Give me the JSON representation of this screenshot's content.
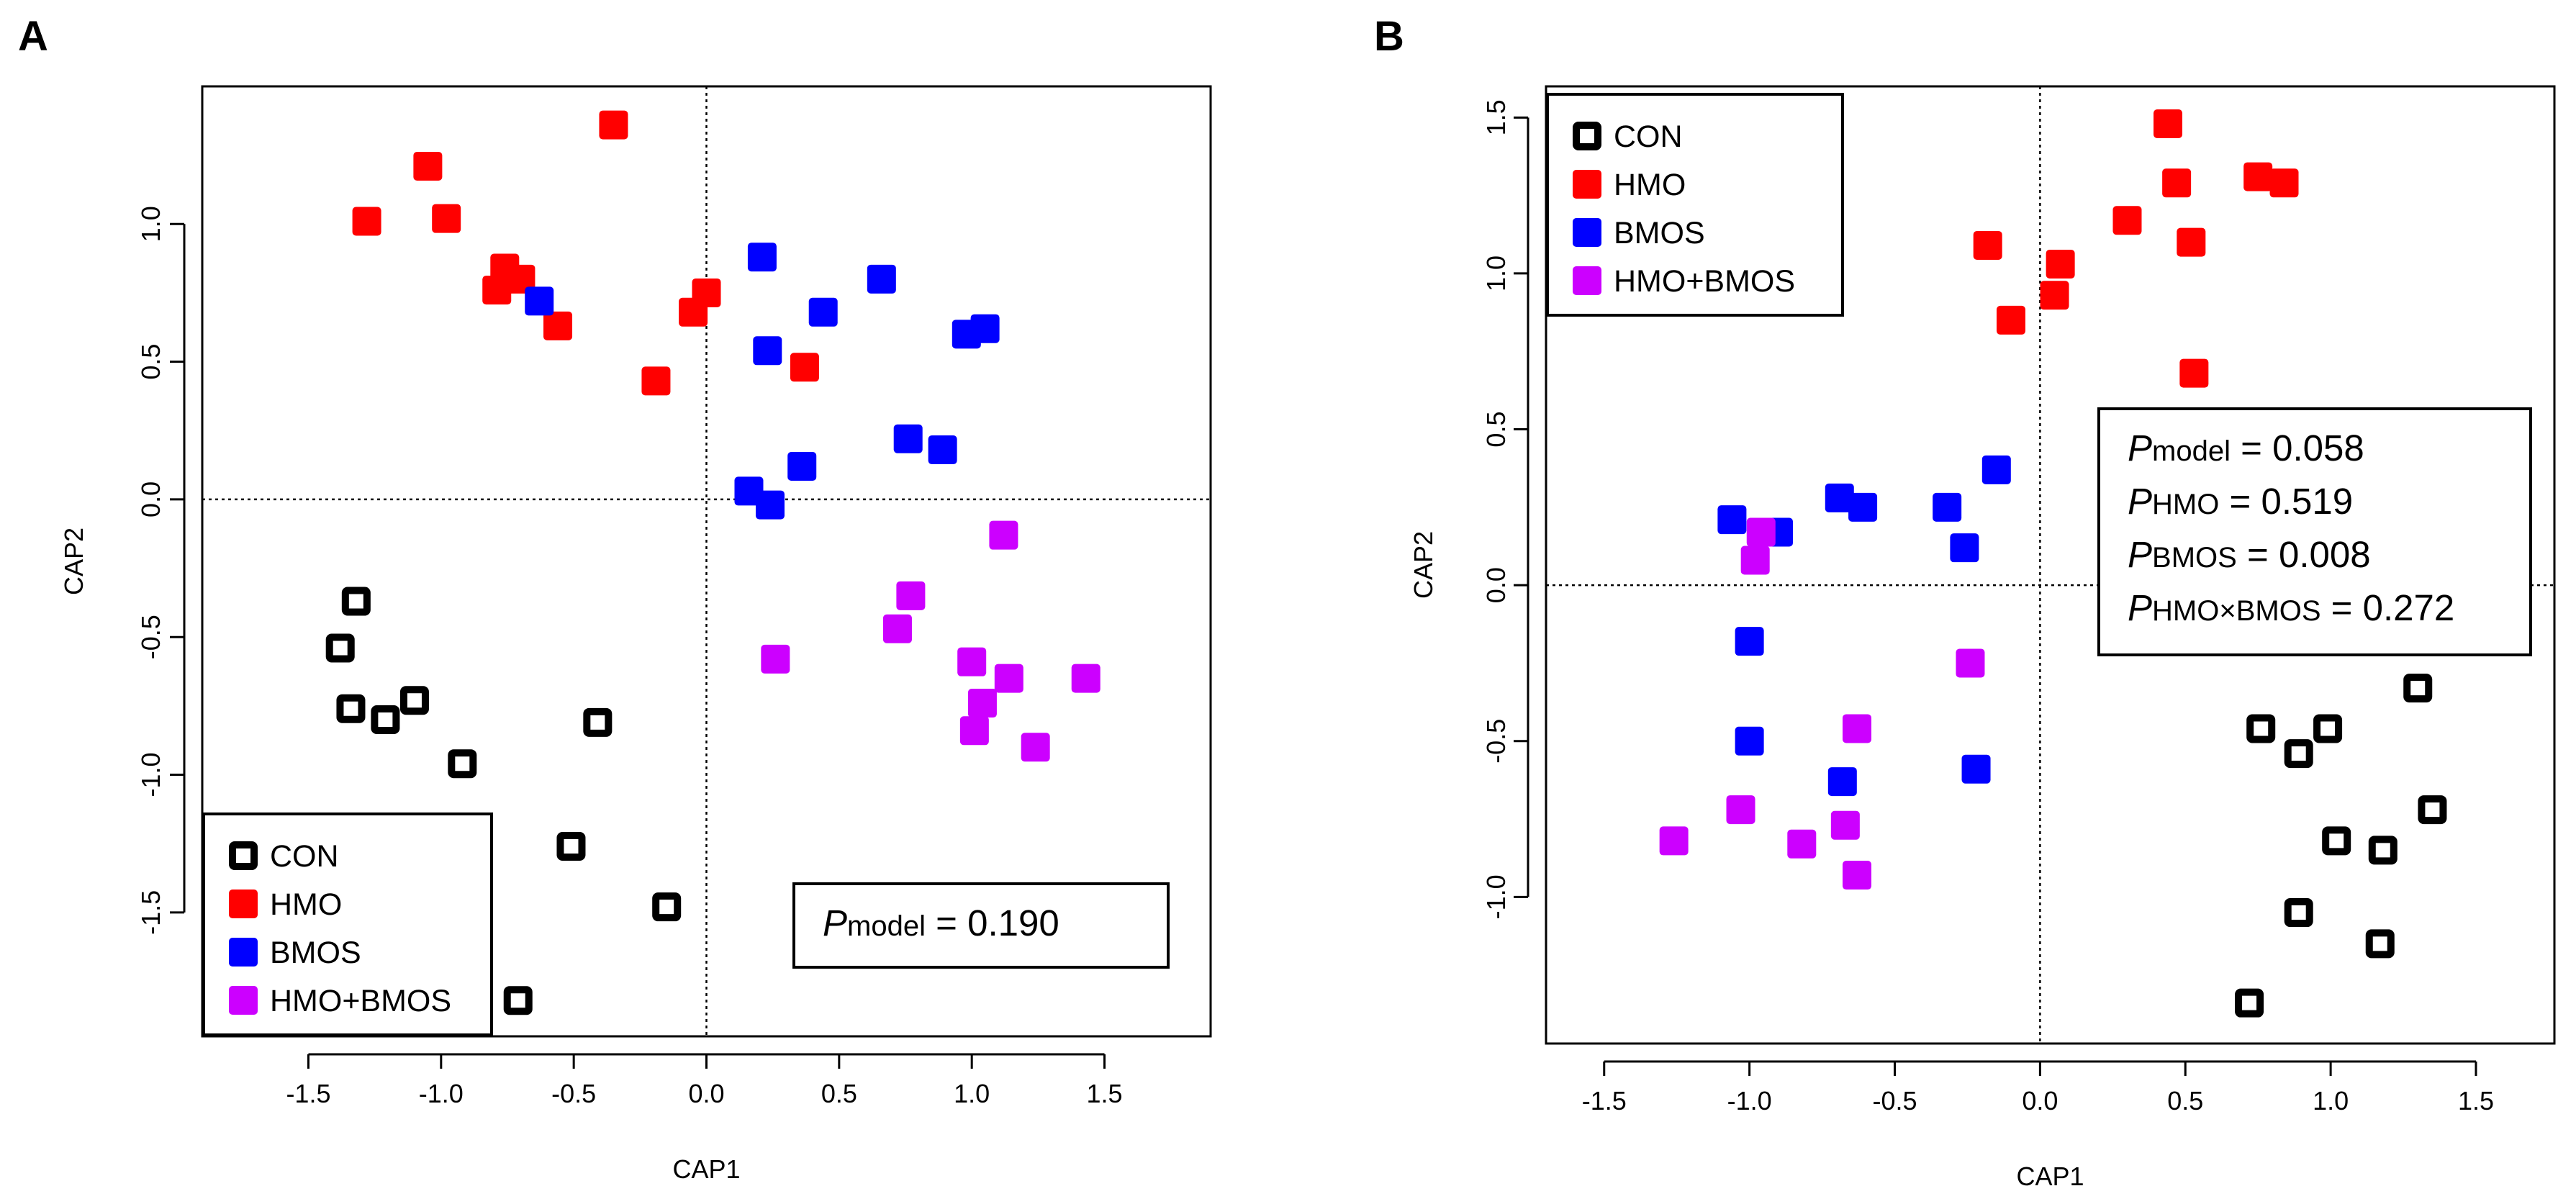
{
  "chart_data": [
    {
      "type": "scatter",
      "panel_label": "A",
      "title": "",
      "xlabel": "CAP1",
      "ylabel": "CAP2",
      "xlim": [
        -1.9,
        1.9
      ],
      "ylim": [
        -1.95,
        1.5
      ],
      "xticks": [
        -1.5,
        -1.0,
        -0.5,
        0.0,
        0.5,
        1.0,
        1.5
      ],
      "xtick_labels": [
        "-1.5",
        "-1.0",
        "-0.5",
        "0.0",
        "0.5",
        "1.0",
        "1.5"
      ],
      "yticks": [
        -1.5,
        -1.0,
        -0.5,
        0.0,
        0.5,
        1.0
      ],
      "ytick_labels": [
        "-1.5",
        "-1.0",
        "-0.5",
        "0.0",
        "0.5",
        "1.0"
      ],
      "reference_lines": {
        "x": 0,
        "y": 0
      },
      "legend_position": "bottom-left",
      "stats_position": "bottom-right",
      "stats": [
        {
          "letter": "P",
          "sub": "model",
          "text": " = 0.190"
        }
      ],
      "series": [
        {
          "name": "CON",
          "color": "#000000",
          "filled": false,
          "x": [
            -1.32,
            -1.38,
            -1.34,
            -1.21,
            -1.1,
            -0.92,
            -0.41,
            -0.51,
            -0.15,
            -0.71
          ],
          "y": [
            -0.37,
            -0.54,
            -0.76,
            -0.8,
            -0.73,
            -0.96,
            -0.81,
            -1.26,
            -1.48,
            -1.82
          ]
        },
        {
          "name": "HMO",
          "color": "#ff0000",
          "filled": true,
          "x": [
            -1.28,
            -1.05,
            -0.98,
            -0.76,
            -0.7,
            -0.79,
            -0.56,
            -0.35,
            -0.05,
            0.0,
            -0.19,
            0.37
          ],
          "y": [
            1.01,
            1.21,
            1.02,
            0.84,
            0.8,
            0.76,
            0.63,
            1.36,
            0.68,
            0.75,
            0.43,
            0.48
          ]
        },
        {
          "name": "BMOS",
          "color": "#0000ff",
          "filled": true,
          "x": [
            -0.63,
            0.21,
            0.23,
            0.44,
            0.66,
            0.98,
            1.05,
            0.76,
            0.89,
            0.36,
            0.16,
            0.24
          ],
          "y": [
            0.72,
            0.88,
            0.54,
            0.68,
            0.8,
            0.6,
            0.62,
            0.22,
            0.18,
            0.12,
            0.03,
            -0.02
          ]
        },
        {
          "name": "HMO+BMOS",
          "color": "#cc00ff",
          "filled": true,
          "x": [
            1.12,
            0.77,
            0.72,
            0.26,
            1.0,
            1.14,
            1.43,
            1.04,
            1.01,
            1.24
          ],
          "y": [
            -0.13,
            -0.35,
            -0.47,
            -0.58,
            -0.59,
            -0.65,
            -0.65,
            -0.74,
            -0.84,
            -0.9
          ]
        }
      ]
    },
    {
      "type": "scatter",
      "panel_label": "B",
      "title": "",
      "xlabel": "CAP1",
      "ylabel": "CAP2",
      "xlim": [
        -1.7,
        1.77
      ],
      "ylim": [
        -1.47,
        1.6
      ],
      "xticks": [
        -1.5,
        -1.0,
        -0.5,
        0.0,
        0.5,
        1.0,
        1.5
      ],
      "xtick_labels": [
        "-1.5",
        "-1.0",
        "-0.5",
        "0.0",
        "0.5",
        "1.0",
        "1.5"
      ],
      "yticks": [
        -1.0,
        -0.5,
        0.0,
        0.5,
        1.0,
        1.5
      ],
      "ytick_labels": [
        "-1.0",
        "-0.5",
        "0.0",
        "0.5",
        "1.0",
        "1.5"
      ],
      "reference_lines": {
        "x": 0,
        "y": 0
      },
      "legend_position": "top-left",
      "stats_position": "top-right",
      "stats": [
        {
          "letter": "P",
          "sub": "model",
          "text": " = 0.058"
        },
        {
          "letter": "P",
          "sub": "HMO",
          "text": " = 0.519"
        },
        {
          "letter": "P",
          "sub": "BMOS",
          "text": " = 0.008"
        },
        {
          "letter": "P",
          "sub": "HMO×BMOS",
          "text": " = 0.272"
        }
      ],
      "series": [
        {
          "name": "CON",
          "color": "#000000",
          "filled": false,
          "x": [
            1.3,
            0.76,
            0.99,
            0.89,
            1.35,
            1.02,
            1.18,
            0.89,
            1.17,
            0.72
          ],
          "y": [
            -0.33,
            -0.46,
            -0.46,
            -0.54,
            -0.72,
            -0.82,
            -0.85,
            -1.05,
            -1.15,
            -1.34
          ]
        },
        {
          "name": "HMO",
          "color": "#ff0000",
          "filled": true,
          "x": [
            0.44,
            0.47,
            0.75,
            0.84,
            0.3,
            0.52,
            -0.18,
            0.07,
            0.05,
            -0.1,
            0.53
          ],
          "y": [
            1.48,
            1.29,
            1.31,
            1.29,
            1.17,
            1.1,
            1.09,
            1.03,
            0.93,
            0.85,
            0.68
          ]
        },
        {
          "name": "BMOS",
          "color": "#0000ff",
          "filled": true,
          "x": [
            -1.06,
            -0.9,
            -0.69,
            -0.61,
            -0.32,
            -0.26,
            -0.15,
            -1.0,
            -1.0,
            -0.68,
            -0.22
          ],
          "y": [
            0.21,
            0.17,
            0.28,
            0.25,
            0.25,
            0.12,
            0.37,
            -0.18,
            -0.5,
            -0.63,
            -0.59
          ]
        },
        {
          "name": "HMO+BMOS",
          "color": "#cc00ff",
          "filled": true,
          "x": [
            -0.96,
            -0.98,
            -0.24,
            -0.63,
            -1.03,
            -1.26,
            -0.82,
            -0.67,
            -0.63
          ],
          "y": [
            0.17,
            0.08,
            -0.25,
            -0.46,
            -0.72,
            -0.82,
            -0.83,
            -0.77,
            -0.93
          ]
        }
      ]
    }
  ]
}
